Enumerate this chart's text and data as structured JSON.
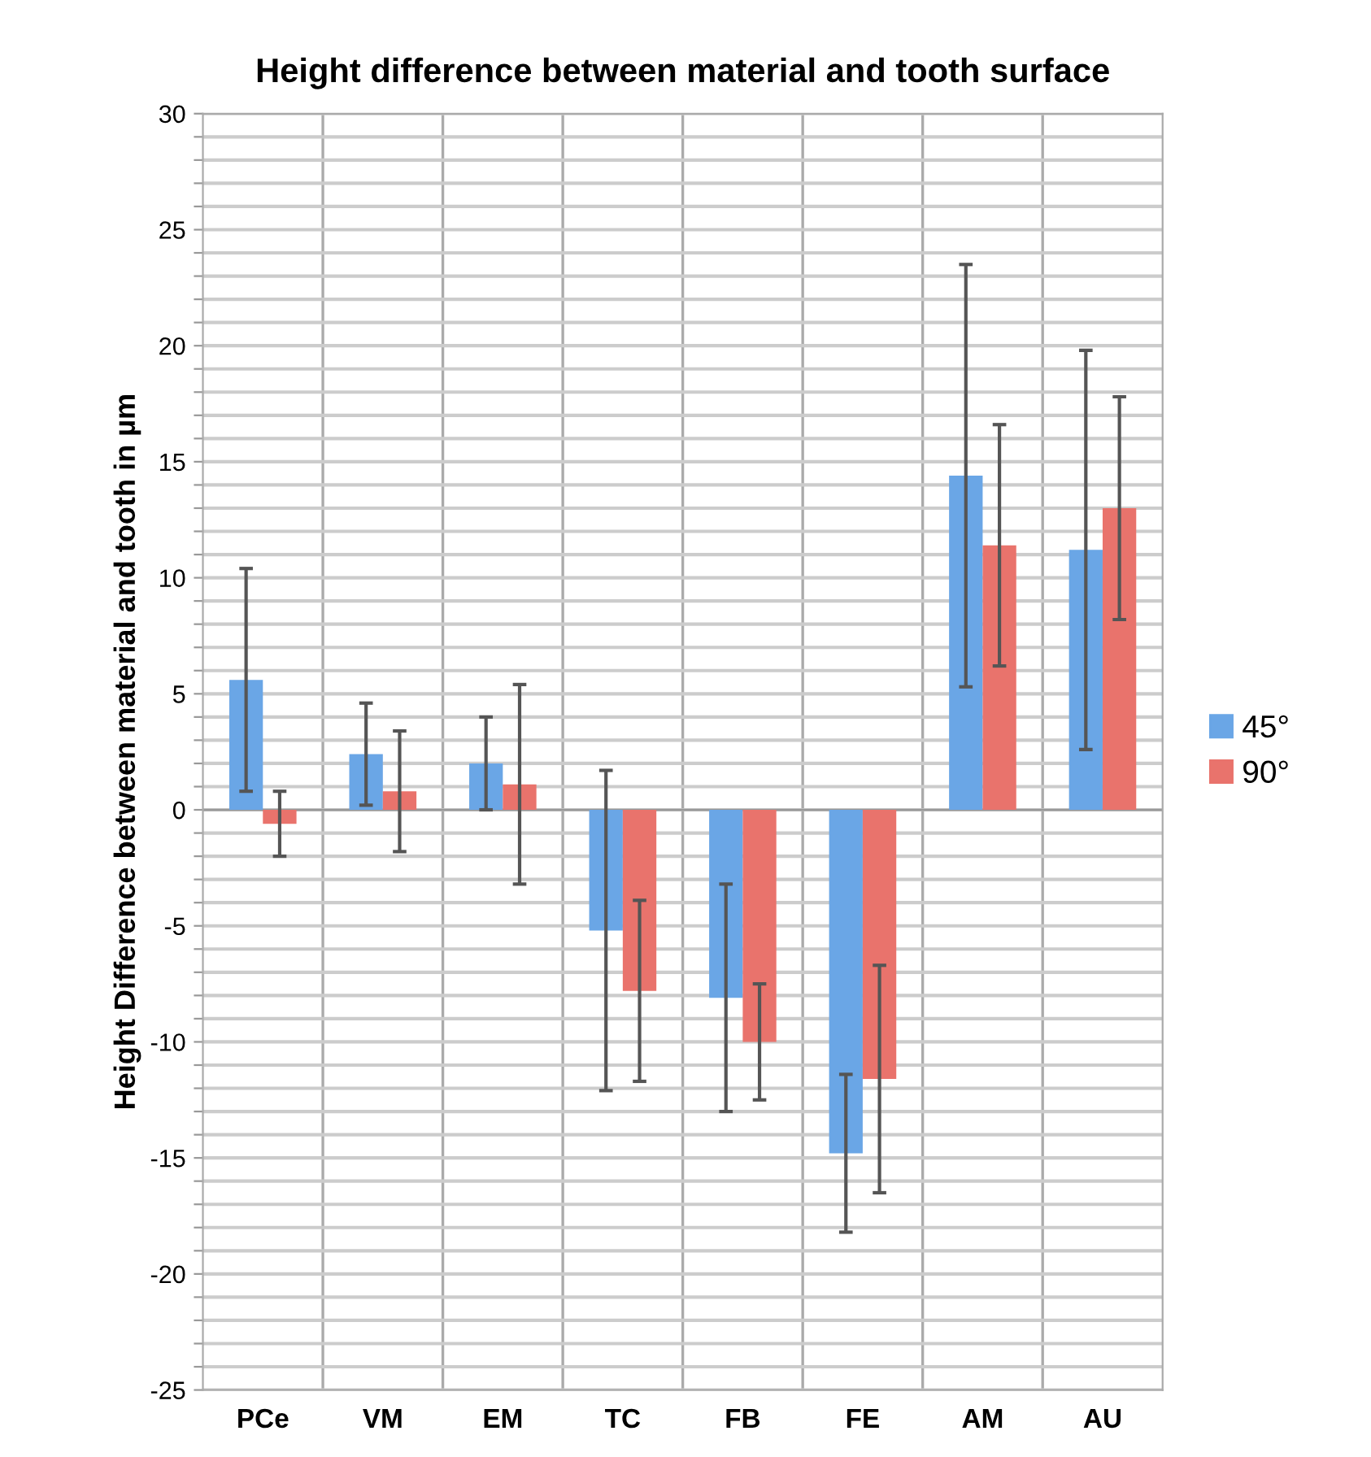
{
  "chart_data": {
    "type": "bar",
    "title": "Height difference between material and tooth surface",
    "ylabel": "Height Difference between material and tooth in µm",
    "categories": [
      "PCe",
      "VM",
      "EM",
      "TC",
      "FB",
      "FE",
      "AM",
      "AU"
    ],
    "series": [
      {
        "name": "45°",
        "color": "#6aa6e6",
        "values": [
          5.6,
          2.4,
          2.0,
          -5.2,
          -8.1,
          -14.8,
          14.4,
          11.2
        ],
        "errors": [
          4.8,
          2.2,
          2.0,
          6.9,
          4.9,
          3.4,
          9.1,
          8.6
        ]
      },
      {
        "name": "90°",
        "color": "#e9736c",
        "values": [
          -0.6,
          0.8,
          1.1,
          -7.8,
          -10.0,
          -11.6,
          11.4,
          13.0
        ],
        "errors": [
          1.4,
          2.6,
          4.3,
          3.9,
          2.5,
          4.9,
          5.2,
          4.8
        ]
      }
    ],
    "ylim": [
      -25,
      30
    ],
    "yticks": [
      -25,
      {
        "value": -24,
        "label": null
      },
      {
        "value": -23,
        "label": null
      },
      {
        "value": -22,
        "label": null
      },
      {
        "value": -21,
        "label": null
      },
      -20,
      {
        "value": -19,
        "label": null
      },
      {
        "value": -18,
        "label": null
      },
      {
        "value": -17,
        "label": null
      },
      {
        "value": -16,
        "label": null
      },
      -15,
      {
        "value": -14,
        "label": null
      },
      {
        "value": -13,
        "label": null
      },
      {
        "value": -12,
        "label": null
      },
      {
        "value": -11,
        "label": null
      },
      -10,
      {
        "value": -9,
        "label": null
      },
      {
        "value": -8,
        "label": null
      },
      {
        "value": -7,
        "label": null
      },
      {
        "value": -6,
        "label": null
      },
      -5,
      {
        "value": -4,
        "label": null
      },
      {
        "value": -3,
        "label": null
      },
      {
        "value": -2,
        "label": null
      },
      {
        "value": -1,
        "label": null
      },
      0,
      {
        "value": 1,
        "label": null
      },
      {
        "value": 2,
        "label": null
      },
      {
        "value": 3,
        "label": null
      },
      {
        "value": 4,
        "label": null
      },
      5,
      {
        "value": 6,
        "label": null
      },
      {
        "value": 7,
        "label": null
      },
      {
        "value": 8,
        "label": null
      },
      {
        "value": 9,
        "label": null
      },
      10,
      {
        "value": 11,
        "label": null
      },
      {
        "value": 12,
        "label": null
      },
      {
        "value": 13,
        "label": null
      },
      {
        "value": 14,
        "label": null
      },
      15,
      {
        "value": 16,
        "label": null
      },
      {
        "value": 17,
        "label": null
      },
      {
        "value": 18,
        "label": null
      },
      {
        "value": 19,
        "label": null
      },
      20,
      {
        "value": 21,
        "label": null
      },
      {
        "value": 22,
        "label": null
      },
      {
        "value": 23,
        "label": null
      },
      {
        "value": 24,
        "label": null
      },
      25,
      {
        "value": 26,
        "label": null
      },
      {
        "value": 27,
        "label": null
      },
      {
        "value": 28,
        "label": null
      },
      {
        "value": 29,
        "label": null
      },
      30
    ],
    "grid": true,
    "legend": "right"
  }
}
